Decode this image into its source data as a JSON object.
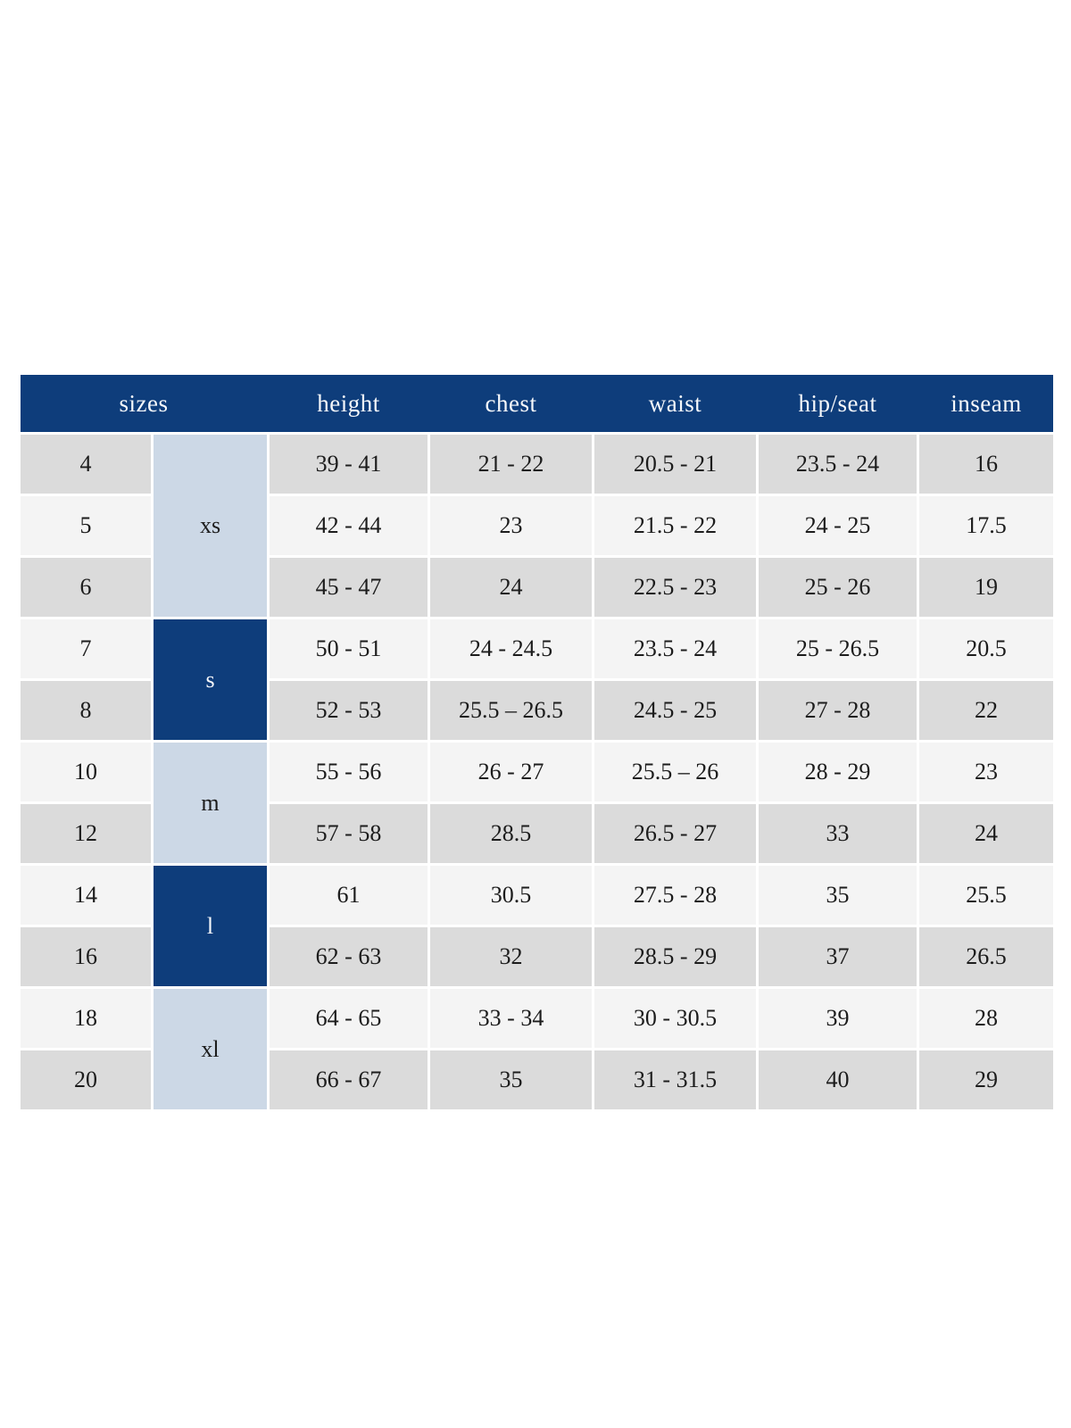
{
  "colors": {
    "header_bg": "#0e3d7b",
    "header_text": "#f6f8fb",
    "group_light_bg": "#ccd8e6",
    "group_dark_bg": "#0e3d7b",
    "row_gray_bg": "#dbdbdb",
    "row_light_bg": "#f4f4f4",
    "cell_text": "#1c1c1c",
    "gap_color": "#ffffff"
  },
  "chart_data": {
    "type": "table",
    "header": {
      "sizes": "sizes",
      "height": "height",
      "chest": "chest",
      "waist": "waist",
      "hip_seat": "hip/seat",
      "inseam": "inseam"
    },
    "groups": [
      {
        "label": "xs",
        "rows_spanned": 3,
        "variant": "light"
      },
      {
        "label": "s",
        "rows_spanned": 2,
        "variant": "dark"
      },
      {
        "label": "m",
        "rows_spanned": 2,
        "variant": "light"
      },
      {
        "label": "l",
        "rows_spanned": 2,
        "variant": "dark"
      },
      {
        "label": "xl",
        "rows_spanned": 2,
        "variant": "light"
      }
    ],
    "rows": [
      {
        "size": "4",
        "group": "xs",
        "height": "39 - 41",
        "chest": "21 - 22",
        "waist": "20.5 - 21",
        "hip_seat": "23.5 - 24",
        "inseam": "16"
      },
      {
        "size": "5",
        "group": "xs",
        "height": "42 - 44",
        "chest": "23",
        "waist": "21.5 - 22",
        "hip_seat": "24 - 25",
        "inseam": "17.5"
      },
      {
        "size": "6",
        "group": "xs",
        "height": "45 - 47",
        "chest": "24",
        "waist": "22.5 - 23",
        "hip_seat": "25 - 26",
        "inseam": "19"
      },
      {
        "size": "7",
        "group": "s",
        "height": "50 - 51",
        "chest": "24 - 24.5",
        "waist": "23.5 - 24",
        "hip_seat": "25 - 26.5",
        "inseam": "20.5"
      },
      {
        "size": "8",
        "group": "s",
        "height": "52 - 53",
        "chest": "25.5 – 26.5",
        "waist": "24.5 - 25",
        "hip_seat": "27 - 28",
        "inseam": "22"
      },
      {
        "size": "10",
        "group": "m",
        "height": "55 - 56",
        "chest": "26 - 27",
        "waist": "25.5 – 26",
        "hip_seat": "28 - 29",
        "inseam": "23"
      },
      {
        "size": "12",
        "group": "m",
        "height": "57 - 58",
        "chest": "28.5",
        "waist": "26.5 - 27",
        "hip_seat": "33",
        "inseam": "24"
      },
      {
        "size": "14",
        "group": "l",
        "height": "61",
        "chest": "30.5",
        "waist": "27.5 - 28",
        "hip_seat": "35",
        "inseam": "25.5"
      },
      {
        "size": "16",
        "group": "l",
        "height": "62 - 63",
        "chest": "32",
        "waist": "28.5 - 29",
        "hip_seat": "37",
        "inseam": "26.5"
      },
      {
        "size": "18",
        "group": "xl",
        "height": "64 - 65",
        "chest": "33 - 34",
        "waist": "30 - 30.5",
        "hip_seat": "39",
        "inseam": "28"
      },
      {
        "size": "20",
        "group": "xl",
        "height": "66 - 67",
        "chest": "35",
        "waist": "31 - 31.5",
        "hip_seat": "40",
        "inseam": "29"
      }
    ]
  }
}
